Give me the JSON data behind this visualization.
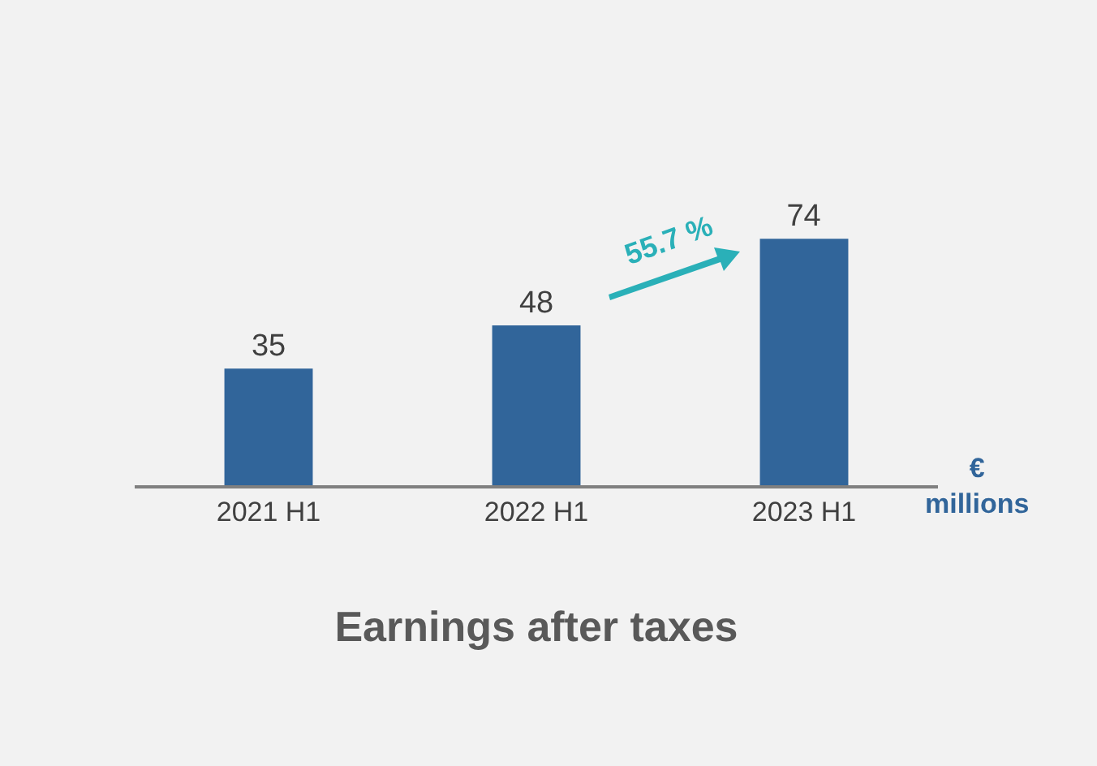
{
  "chart_data": {
    "type": "bar",
    "title": "Earnings after taxes",
    "categories": [
      "2021 H1",
      "2022 H1",
      "2023 H1"
    ],
    "values": [
      35,
      48,
      74
    ],
    "color": "#31659a",
    "data_labels": true,
    "tick_labels": "x",
    "grid": false,
    "legend": false,
    "annotations": [
      "55.7 %",
      "€ millions"
    ]
  }
}
